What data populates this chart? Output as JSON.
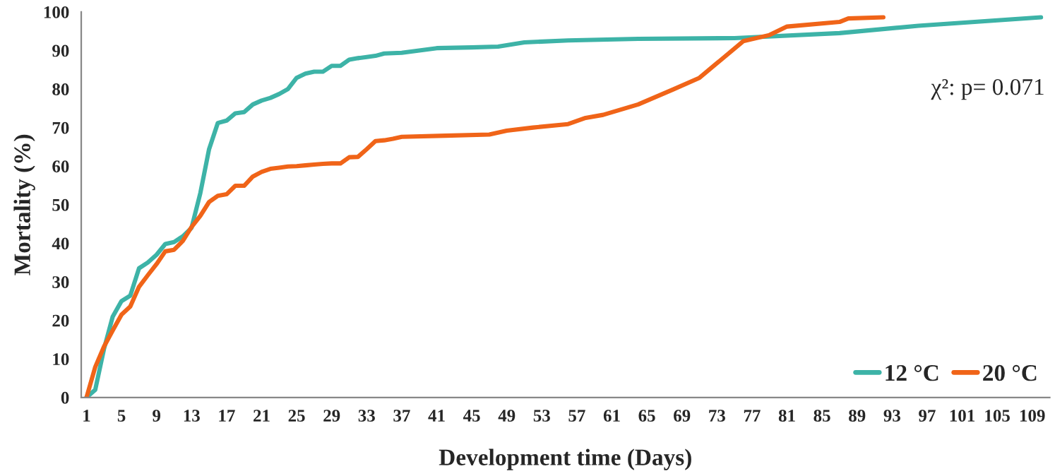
{
  "chart_data": {
    "type": "line",
    "xlabel": "Development time (Days)",
    "ylabel": "Mortality (%)",
    "xlim": [
      0.4,
      111
    ],
    "xticks": [
      1,
      5,
      9,
      13,
      17,
      21,
      25,
      29,
      33,
      37,
      41,
      45,
      49,
      53,
      57,
      61,
      65,
      69,
      73,
      77,
      81,
      85,
      89,
      93,
      97,
      101,
      105,
      109
    ],
    "ylim": [
      0,
      100
    ],
    "yticks": [
      0,
      10,
      20,
      30,
      40,
      50,
      60,
      70,
      80,
      90,
      100
    ],
    "grid": false,
    "legend": "bottom right",
    "marker": "none",
    "line_style": "solid",
    "annotations": [
      "χ²: p= 0.071"
    ],
    "series": [
      {
        "name": "12 °C",
        "color": "#3db3a7",
        "x": [
          1,
          2,
          3,
          4,
          5,
          6,
          7,
          8,
          9,
          10,
          11,
          12,
          13,
          14,
          15,
          16,
          17,
          18,
          19,
          20,
          21,
          22,
          23,
          24,
          25,
          26,
          27,
          28,
          29,
          30,
          31,
          32,
          33,
          34,
          35,
          36,
          37,
          41,
          45,
          48,
          51,
          56,
          64,
          75,
          87,
          96,
          110
        ],
        "values": [
          0,
          2,
          12.6,
          21,
          25,
          26.4,
          33.5,
          35,
          37,
          39.8,
          40.3,
          41.8,
          44,
          53,
          64.4,
          71.2,
          71.8,
          73.7,
          74,
          76,
          77,
          77.7,
          78.7,
          80,
          82.9,
          84,
          84.5,
          84.5,
          86,
          86,
          87.6,
          88,
          88.3,
          88.6,
          89.2,
          89.3,
          89.4,
          90.6,
          90.8,
          91,
          92.1,
          92.6,
          93,
          93.2,
          94.5,
          96.4,
          98.6
        ]
      },
      {
        "name": "20 °C",
        "color": "#f06418",
        "x": [
          1,
          2,
          3,
          4,
          5,
          6,
          7,
          8,
          9,
          10,
          11,
          12,
          13,
          14,
          15,
          16,
          17,
          18,
          19,
          20,
          21,
          22,
          23,
          24,
          25,
          26,
          27,
          28,
          29,
          30,
          31,
          32,
          33,
          34,
          35,
          36,
          37,
          42,
          47,
          49,
          52,
          56,
          58,
          60,
          64,
          68,
          71,
          73,
          76,
          79,
          81,
          87,
          88,
          92
        ],
        "values": [
          0,
          7.9,
          13.2,
          17.4,
          21.5,
          23.6,
          28.7,
          31.7,
          34.6,
          37.9,
          38.3,
          40.6,
          44.2,
          47.1,
          50.7,
          52.3,
          52.7,
          54.9,
          54.9,
          57.3,
          58.5,
          59.3,
          59.6,
          59.9,
          60,
          60.2,
          60.4,
          60.6,
          60.7,
          60.7,
          62.3,
          62.4,
          64.4,
          66.5,
          66.7,
          67.1,
          67.6,
          67.9,
          68.2,
          69.2,
          70,
          70.9,
          72.5,
          73.3,
          76,
          79.9,
          82.9,
          86.7,
          92.4,
          94,
          96.2,
          97.4,
          98.3,
          98.6
        ]
      }
    ]
  }
}
